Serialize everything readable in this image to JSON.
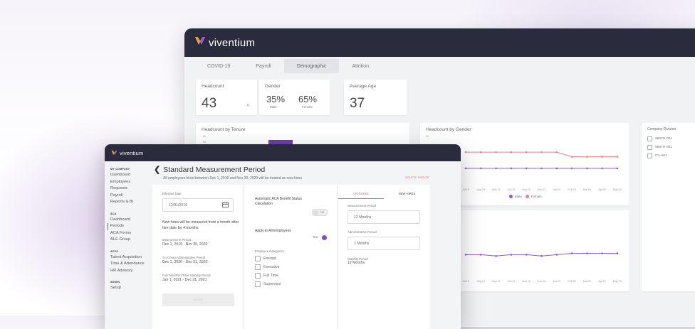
{
  "brand": {
    "name": "viventium"
  },
  "back_window": {
    "tabs": [
      {
        "label": "COVID-19",
        "active": false
      },
      {
        "label": "Payroll",
        "active": false
      },
      {
        "label": "Demographic",
        "active": true
      },
      {
        "label": "Attrition",
        "active": false
      }
    ],
    "help_label": "H",
    "headcount": {
      "title": "Headcount",
      "value": "43",
      "sub": "0"
    },
    "gender": {
      "title": "Gender",
      "male_pct": "35%",
      "male_label": "Male",
      "female_pct": "65%",
      "female_label": "Female"
    },
    "average_age": {
      "title": "Average Age",
      "value": "37"
    },
    "tenure_chart": {
      "title": "Headcount by Tenure",
      "y_ticks": [
        "50",
        "25"
      ]
    },
    "gender_chart": {
      "title": "Headcount by Gender",
      "y_tick": "40",
      "legend": [
        {
          "label": "Male",
          "color": "#8a5cc9"
        },
        {
          "label": "Female",
          "color": "#e98383"
        }
      ]
    },
    "company_division": {
      "title": "Company Division",
      "items": [
        "988TH-001",
        "988TH-001",
        "IT1-001"
      ]
    }
  },
  "chart_data": [
    {
      "type": "line",
      "title": "Headcount by Gender",
      "x": [
        "Jul'19",
        "Aug'19",
        "Sep'19",
        "Oct'19",
        "Nov'19",
        "Dec'19",
        "Jan'20",
        "Feb'20",
        "Mar'20",
        "Apr'20",
        "May'20"
      ],
      "series": [
        {
          "name": "Female",
          "values": [
            27,
            27,
            27,
            27,
            27,
            27,
            27,
            23,
            23,
            23,
            23
          ]
        },
        {
          "name": "Male",
          "values": [
            13,
            13,
            13,
            13,
            13,
            13,
            13,
            13,
            13,
            13,
            13
          ]
        }
      ],
      "ylim": [
        0,
        40
      ]
    },
    {
      "type": "line",
      "x": [
        "Jul'19",
        "Aug'19",
        "Sep'19",
        "Oct'19",
        "Nov'19",
        "Dec'19",
        "Jan'20",
        "Feb'20",
        "Mar'20",
        "Apr'20",
        "May'20"
      ],
      "series": [
        {
          "values": [
            12,
            12,
            11,
            12,
            12,
            11,
            12,
            13,
            13,
            13,
            13
          ]
        }
      ],
      "ylim": [
        0,
        40
      ]
    }
  ],
  "colors": {
    "accent": "#7d52c4",
    "female": "#e98383",
    "male": "#8a5cc9",
    "dark": "#2a2b3d"
  },
  "front_window": {
    "sidebar": {
      "sections": [
        {
          "header": "MY COMPANY",
          "items": [
            "Dashboard",
            "Employees",
            "Requests",
            "Payroll",
            "Reports & BI"
          ]
        },
        {
          "header": "ACA",
          "items": [
            "Dashboard",
            "Periods",
            "ACA Forms",
            "ALE Group"
          ]
        },
        {
          "header": "APPS",
          "items": [
            "Talent Acquisition",
            "Time & Attendance",
            "HR Advisory"
          ]
        },
        {
          "header": "ADMIN",
          "items": [
            "Setup"
          ]
        }
      ],
      "active_item": "Periods"
    },
    "page_title": "Standard Measurement Period",
    "page_subtitle": "All employees hired between Dec 1, 2019 and Nov 30, 2020 will be treated as new hires.",
    "delete_label": "DELETE PERIOD",
    "left": {
      "effective_date_label": "Effective Date",
      "effective_date_value": "12/01/2019",
      "description": "New hires will be measured from a month after hire date for 4 months",
      "measurement_label": "Measurement Period",
      "measurement_value": "Dec 1, 2019 - Nov 30, 2020",
      "admin_label": "On-Going Administrative Period",
      "admin_value": "Dec 1, 2020 - Dec 31, 2020",
      "stability_label": "Full-Time/Part-Time Stability Period",
      "stability_value": "Jan 1, 2021 - Dec 31, 2021",
      "save_label": "SAVE"
    },
    "middle": {
      "auto_label": "Automatic ACA Benefit Status Calculation",
      "auto_toggle": "No",
      "apply_label": "Apply to All Employees",
      "apply_toggle": "Yes",
      "categories_label": "Employee Categories",
      "categories": [
        "Exempt",
        "Executive",
        "Full Time",
        "Supervisor"
      ]
    },
    "right": {
      "tabs": [
        {
          "label": "ON-GOING",
          "active": true
        },
        {
          "label": "NEW HIRES",
          "active": false
        }
      ],
      "measurement_label": "Measurement Period",
      "measurement_value": "12 Months",
      "admin_label": "Administrative Period",
      "admin_value": "1 Months",
      "stability_label": "Stability Period",
      "stability_value": "12 Months"
    }
  }
}
